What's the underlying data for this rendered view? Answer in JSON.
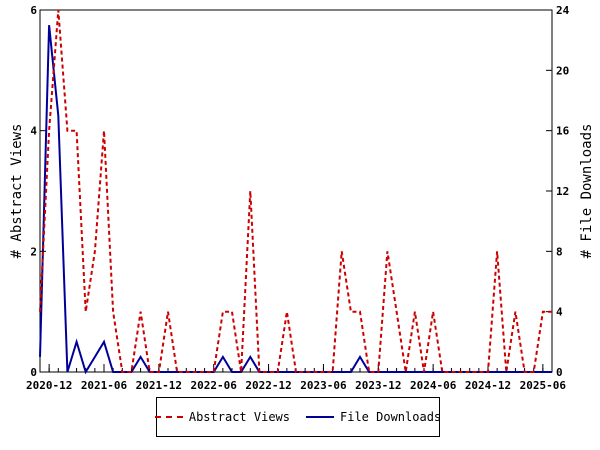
{
  "chart_data": {
    "type": "line",
    "xlabel": "",
    "y_left_label": "# Abstract Views",
    "y_right_label": "# File Downloads",
    "y_left_range": [
      0,
      6
    ],
    "y_right_range": [
      0,
      24
    ],
    "y_left_ticks": [
      "0",
      "2",
      "4",
      "6"
    ],
    "y_right_ticks": [
      "0",
      "4",
      "8",
      "12",
      "16",
      "20",
      "24"
    ],
    "x_range": [
      "2020-11",
      "2025-07"
    ],
    "x_tick_labels": [
      "2020-12",
      "2021-06",
      "2021-12",
      "2022-06",
      "2022-12",
      "2023-06",
      "2023-12",
      "2024-06",
      "2024-12",
      "2025-06"
    ],
    "x_tick_values": [
      "2020-12",
      "2021-06",
      "2021-12",
      "2022-06",
      "2022-12",
      "2023-06",
      "2023-12",
      "2024-06",
      "2024-12",
      "2025-06"
    ],
    "grid": false,
    "legend_position": "bottom",
    "series": [
      {
        "name": "Abstract Views",
        "axis": "left",
        "color": "#cc0000",
        "style": "dashed",
        "points": [
          [
            "2020-11",
            1
          ],
          [
            "2020-12",
            4
          ],
          [
            "2021-01",
            6
          ],
          [
            "2021-02",
            4
          ],
          [
            "2021-03",
            4
          ],
          [
            "2021-04",
            1
          ],
          [
            "2021-05",
            2
          ],
          [
            "2021-06",
            4
          ],
          [
            "2021-07",
            1
          ],
          [
            "2021-08",
            0
          ],
          [
            "2021-09",
            0
          ],
          [
            "2021-10",
            1
          ],
          [
            "2021-11",
            0
          ],
          [
            "2021-12",
            0
          ],
          [
            "2022-01",
            1
          ],
          [
            "2022-02",
            0
          ],
          [
            "2022-03",
            0
          ],
          [
            "2022-04",
            0
          ],
          [
            "2022-05",
            0
          ],
          [
            "2022-06",
            0
          ],
          [
            "2022-07",
            1
          ],
          [
            "2022-08",
            1
          ],
          [
            "2022-09",
            0
          ],
          [
            "2022-10",
            3
          ],
          [
            "2022-11",
            0
          ],
          [
            "2022-12",
            0
          ],
          [
            "2023-01",
            0
          ],
          [
            "2023-02",
            1
          ],
          [
            "2023-03",
            0
          ],
          [
            "2023-04",
            0
          ],
          [
            "2023-05",
            0
          ],
          [
            "2023-06",
            0
          ],
          [
            "2023-07",
            0
          ],
          [
            "2023-08",
            2
          ],
          [
            "2023-09",
            1
          ],
          [
            "2023-10",
            1
          ],
          [
            "2023-11",
            0
          ],
          [
            "2023-12",
            0
          ],
          [
            "2024-01",
            2
          ],
          [
            "2024-02",
            1
          ],
          [
            "2024-03",
            0
          ],
          [
            "2024-04",
            1
          ],
          [
            "2024-05",
            0
          ],
          [
            "2024-06",
            1
          ],
          [
            "2024-07",
            0
          ],
          [
            "2024-08",
            0
          ],
          [
            "2024-09",
            0
          ],
          [
            "2024-10",
            0
          ],
          [
            "2024-11",
            0
          ],
          [
            "2024-12",
            0
          ],
          [
            "2025-01",
            2
          ],
          [
            "2025-02",
            0
          ],
          [
            "2025-03",
            1
          ],
          [
            "2025-04",
            0
          ],
          [
            "2025-05",
            0
          ],
          [
            "2025-06",
            1
          ],
          [
            "2025-07",
            1
          ]
        ]
      },
      {
        "name": "File Downloads",
        "axis": "right",
        "color": "#000099",
        "style": "solid",
        "points": [
          [
            "2020-11",
            1
          ],
          [
            "2020-12",
            23
          ],
          [
            "2021-01",
            17
          ],
          [
            "2021-02",
            0
          ],
          [
            "2021-03",
            2
          ],
          [
            "2021-04",
            0
          ],
          [
            "2021-05",
            1
          ],
          [
            "2021-06",
            2
          ],
          [
            "2021-07",
            0
          ],
          [
            "2021-08",
            0
          ],
          [
            "2021-09",
            0
          ],
          [
            "2021-10",
            1
          ],
          [
            "2021-11",
            0
          ],
          [
            "2021-12",
            0
          ],
          [
            "2022-01",
            0
          ],
          [
            "2022-02",
            0
          ],
          [
            "2022-03",
            0
          ],
          [
            "2022-04",
            0
          ],
          [
            "2022-05",
            0
          ],
          [
            "2022-06",
            0
          ],
          [
            "2022-07",
            1
          ],
          [
            "2022-08",
            0
          ],
          [
            "2022-09",
            0
          ],
          [
            "2022-10",
            1
          ],
          [
            "2022-11",
            0
          ],
          [
            "2022-12",
            0
          ],
          [
            "2023-01",
            0
          ],
          [
            "2023-02",
            0
          ],
          [
            "2023-03",
            0
          ],
          [
            "2023-04",
            0
          ],
          [
            "2023-05",
            0
          ],
          [
            "2023-06",
            0
          ],
          [
            "2023-07",
            0
          ],
          [
            "2023-08",
            0
          ],
          [
            "2023-09",
            0
          ],
          [
            "2023-10",
            1
          ],
          [
            "2023-11",
            0
          ],
          [
            "2023-12",
            0
          ],
          [
            "2024-01",
            0
          ],
          [
            "2024-02",
            0
          ],
          [
            "2024-03",
            0
          ],
          [
            "2024-04",
            0
          ],
          [
            "2024-05",
            0
          ],
          [
            "2024-06",
            0
          ],
          [
            "2024-07",
            0
          ],
          [
            "2024-08",
            0
          ],
          [
            "2024-09",
            0
          ],
          [
            "2024-10",
            0
          ],
          [
            "2024-11",
            0
          ],
          [
            "2024-12",
            0
          ],
          [
            "2025-01",
            0
          ],
          [
            "2025-02",
            0
          ],
          [
            "2025-03",
            0
          ],
          [
            "2025-04",
            0
          ],
          [
            "2025-05",
            0
          ],
          [
            "2025-06",
            0
          ],
          [
            "2025-07",
            0
          ]
        ]
      }
    ]
  },
  "legend": {
    "abstract_label": "Abstract Views",
    "downloads_label": "File Downloads"
  }
}
